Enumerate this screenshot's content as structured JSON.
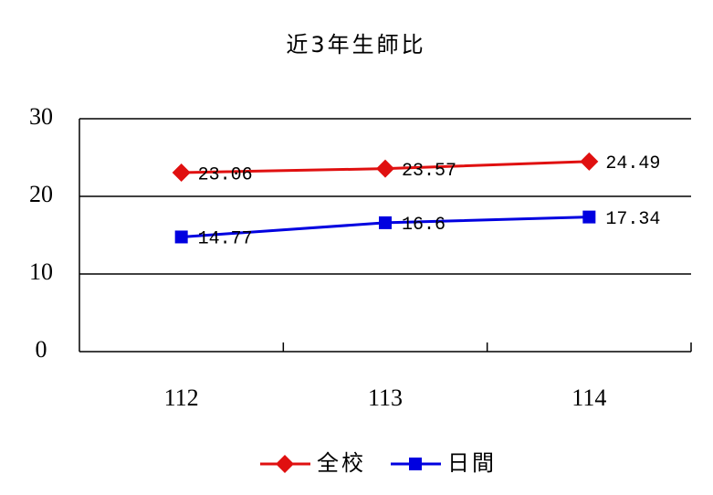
{
  "chart_data": {
    "type": "line",
    "title": "近3年生師比",
    "categories": [
      "112",
      "113",
      "114"
    ],
    "series": [
      {
        "name": "全校",
        "color": "#e01010",
        "marker": "diamond",
        "values": [
          23.06,
          23.57,
          24.49
        ]
      },
      {
        "name": "日間",
        "color": "#0000e0",
        "marker": "square",
        "values": [
          14.77,
          16.6,
          17.34
        ]
      }
    ],
    "ylim": [
      0,
      30
    ],
    "yticks": [
      0,
      10,
      20,
      30
    ],
    "grid": true,
    "legend": "bottom"
  }
}
